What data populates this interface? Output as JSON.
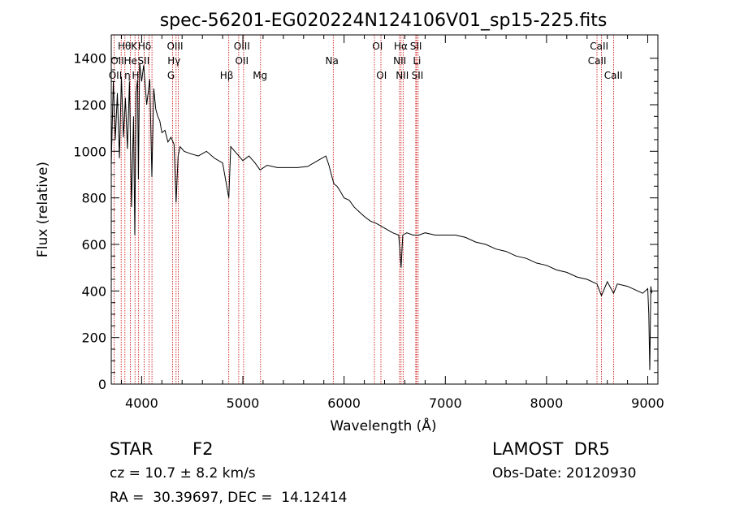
{
  "chart_data": {
    "type": "line",
    "title": "spec-56201-EG020224N124106V01_sp15-225.fits",
    "xlabel": "Wavelength (Å)",
    "ylabel": "Flux (relative)",
    "xlim": [
      3700,
      9100
    ],
    "ylim": [
      0,
      1500
    ],
    "xticks": [
      4000,
      5000,
      6000,
      7000,
      8000,
      9000
    ],
    "yticks": [
      0,
      200,
      400,
      600,
      800,
      1000,
      1200,
      1400
    ],
    "grid": false,
    "series": [
      {
        "x": [
          3700,
          3720,
          3740,
          3760,
          3780,
          3800,
          3820,
          3840,
          3860,
          3880,
          3900,
          3920,
          3933,
          3945,
          3960,
          3968,
          3980,
          4000,
          4020,
          4050,
          4080,
          4101,
          4120,
          4140,
          4160,
          4180,
          4200,
          4230,
          4260,
          4290,
          4320,
          4340,
          4360,
          4380,
          4420,
          4480,
          4560,
          4640,
          4720,
          4800,
          4861,
          4880,
          4920,
          4960,
          5000,
          5060,
          5120,
          5170,
          5240,
          5340,
          5440,
          5540,
          5640,
          5740,
          5820,
          5850,
          5880,
          5900,
          5930,
          5960,
          6000,
          6050,
          6100,
          6150,
          6200,
          6260,
          6320,
          6400,
          6480,
          6540,
          6563,
          6580,
          6620,
          6680,
          6740,
          6800,
          6900,
          7000,
          7100,
          7200,
          7300,
          7400,
          7500,
          7600,
          7700,
          7800,
          7900,
          8000,
          8100,
          8200,
          8300,
          8400,
          8498,
          8542,
          8600,
          8662,
          8700,
          8800,
          8900,
          8950,
          9000,
          9010,
          9020,
          9030,
          9040
        ],
        "y": [
          940,
          1300,
          1050,
          1250,
          970,
          1320,
          1060,
          1230,
          1010,
          1300,
          760,
          1150,
          640,
          1250,
          1310,
          880,
          1380,
          1300,
          1370,
          1200,
          1310,
          890,
          1270,
          1180,
          1150,
          1130,
          1080,
          1090,
          1040,
          1060,
          1030,
          780,
          980,
          1020,
          1000,
          990,
          980,
          1000,
          970,
          950,
          800,
          1020,
          1000,
          980,
          960,
          980,
          950,
          920,
          940,
          930,
          930,
          930,
          935,
          960,
          980,
          940,
          890,
          860,
          850,
          830,
          800,
          790,
          760,
          740,
          720,
          700,
          690,
          670,
          650,
          640,
          500,
          640,
          650,
          640,
          640,
          650,
          640,
          640,
          640,
          630,
          610,
          600,
          580,
          570,
          550,
          540,
          520,
          510,
          490,
          480,
          460,
          450,
          430,
          380,
          440,
          390,
          430,
          420,
          400,
          390,
          410,
          300,
          60,
          420,
          390
        ]
      }
    ],
    "lines": [
      {
        "wl": 3727,
        "label": "OII"
      },
      {
        "wl": 3798,
        "label": "HeI"
      },
      {
        "wl": 3835,
        "label": "Hη"
      },
      {
        "wl": 3889,
        "label": "Hζ"
      },
      {
        "wl": 3934,
        "label": "K"
      },
      {
        "wl": 3970,
        "label": "Hε"
      },
      {
        "wl": 4026,
        "label": "HeI"
      },
      {
        "wl": 4072,
        "label": "SII"
      },
      {
        "wl": 4102,
        "label": "Hδ"
      },
      {
        "wl": 4305,
        "label": "G"
      },
      {
        "wl": 4340,
        "label": "Hγ"
      },
      {
        "wl": 4363,
        "label": "OIII"
      },
      {
        "wl": 4861,
        "label": "Hβ"
      },
      {
        "wl": 4959,
        "label": "OIII"
      },
      {
        "wl": 5007,
        "label": "OIII"
      },
      {
        "wl": 5175,
        "label": "Mg"
      },
      {
        "wl": 5893,
        "label": "Na"
      },
      {
        "wl": 6300,
        "label": "OI"
      },
      {
        "wl": 6364,
        "label": "OI"
      },
      {
        "wl": 6548,
        "label": "NII"
      },
      {
        "wl": 6563,
        "label": "Hα"
      },
      {
        "wl": 6583,
        "label": "NII"
      },
      {
        "wl": 6708,
        "label": "Li"
      },
      {
        "wl": 6716,
        "label": "SII"
      },
      {
        "wl": 6731,
        "label": "SII"
      },
      {
        "wl": 8498,
        "label": "CaII"
      },
      {
        "wl": 8542,
        "label": "CaII"
      },
      {
        "wl": 8662,
        "label": "CaII"
      }
    ],
    "labels_top": [
      {
        "wl": 3830,
        "text": "Hθ"
      },
      {
        "wl": 3925,
        "text": "K"
      },
      {
        "wl": 4030,
        "text": "Hδ"
      },
      {
        "wl": 4330,
        "text": "OIII"
      },
      {
        "wl": 4990,
        "text": "OIII"
      },
      {
        "wl": 6330,
        "text": "OI"
      },
      {
        "wl": 6560,
        "text": "Hα"
      },
      {
        "wl": 6710,
        "text": "SII"
      },
      {
        "wl": 8520,
        "text": "CaII"
      }
    ],
    "labels_mid": [
      {
        "wl": 3760,
        "text": "OII"
      },
      {
        "wl": 3890,
        "text": "He"
      },
      {
        "wl": 4020,
        "text": "SII"
      },
      {
        "wl": 4320,
        "text": "Hγ"
      },
      {
        "wl": 4990,
        "text": "OII"
      },
      {
        "wl": 5880,
        "text": "Na"
      },
      {
        "wl": 6550,
        "text": "NII"
      },
      {
        "wl": 6720,
        "text": "Li"
      },
      {
        "wl": 8500,
        "text": "CaII"
      }
    ],
    "labels_low": [
      {
        "wl": 3740,
        "text": "OII"
      },
      {
        "wl": 3860,
        "text": "η"
      },
      {
        "wl": 3940,
        "text": "H"
      },
      {
        "wl": 4290,
        "text": "G"
      },
      {
        "wl": 4840,
        "text": "Hβ"
      },
      {
        "wl": 5170,
        "text": "Mg"
      },
      {
        "wl": 6370,
        "text": "OI"
      },
      {
        "wl": 6575,
        "text": "NII"
      },
      {
        "wl": 6725,
        "text": "SII"
      },
      {
        "wl": 8660,
        "text": "CaII"
      }
    ]
  },
  "info": {
    "class_label": "STAR",
    "subclass": "F2",
    "survey": "LAMOST  DR5",
    "cz": "cz = 10.7 ± 8.2 km/s",
    "obs_date": "Obs-Date: 20120930",
    "coords": "RA =  30.39697, DEC =  14.12414"
  },
  "colors": {
    "spectrum": "#000000",
    "line_markers": "#cc0000",
    "axes": "#000000",
    "background": "#ffffff"
  }
}
